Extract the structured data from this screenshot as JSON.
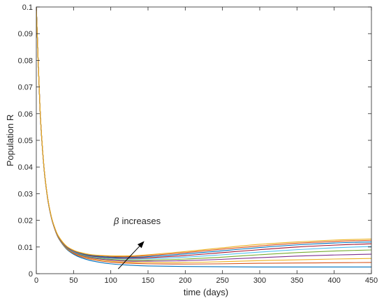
{
  "chart_data": {
    "type": "line",
    "title": "",
    "xlabel": "time (days)",
    "ylabel": "Population R",
    "xlim": [
      0,
      450
    ],
    "ylim": [
      0,
      0.1
    ],
    "xticks": [
      "0",
      "50",
      "100",
      "150",
      "200",
      "250",
      "300",
      "350",
      "400",
      "450"
    ],
    "yticks": [
      "0",
      "0.01",
      "0.02",
      "0.03",
      "0.04",
      "0.05",
      "0.06",
      "0.07",
      "0.08",
      "0.09",
      "0.1"
    ],
    "grid": false,
    "legend": "none",
    "annotation": {
      "symbol": "β",
      "text": "increases",
      "arrow_from": [
        110,
        0.0018
      ],
      "arrow_to": [
        145,
        0.0122
      ]
    },
    "x": [
      0,
      5,
      10,
      15,
      20,
      25,
      30,
      40,
      50,
      60,
      75,
      100,
      125,
      150,
      200,
      250,
      300,
      350,
      400,
      450
    ],
    "series": [
      {
        "color": "#0072BD",
        "values": [
          0.1,
          0.0615,
          0.0405,
          0.0285,
          0.0212,
          0.0165,
          0.0132,
          0.0094,
          0.0073,
          0.006,
          0.0048,
          0.0037,
          0.0032,
          0.0029,
          0.0027,
          0.0026,
          0.0025,
          0.0025,
          0.0025,
          0.0025
        ]
      },
      {
        "color": "#D95319",
        "values": [
          0.1,
          0.0615,
          0.0405,
          0.0285,
          0.0212,
          0.0165,
          0.0133,
          0.0096,
          0.0076,
          0.0064,
          0.0053,
          0.0043,
          0.0039,
          0.0037,
          0.0036,
          0.0037,
          0.0039,
          0.004,
          0.0041,
          0.0042
        ]
      },
      {
        "color": "#EDB120",
        "values": [
          0.1,
          0.0616,
          0.0406,
          0.0286,
          0.0213,
          0.0166,
          0.0134,
          0.0097,
          0.0078,
          0.0067,
          0.0056,
          0.0047,
          0.0043,
          0.0042,
          0.0042,
          0.0045,
          0.0049,
          0.0052,
          0.0055,
          0.0057
        ]
      },
      {
        "color": "#7E2F8E",
        "values": [
          0.1,
          0.0616,
          0.0406,
          0.0286,
          0.0213,
          0.0167,
          0.0135,
          0.0099,
          0.008,
          0.0069,
          0.0059,
          0.0051,
          0.0047,
          0.0047,
          0.0049,
          0.0054,
          0.006,
          0.0066,
          0.007,
          0.0073
        ]
      },
      {
        "color": "#77AC30",
        "values": [
          0.1,
          0.0617,
          0.0407,
          0.0287,
          0.0214,
          0.0168,
          0.0136,
          0.01,
          0.0082,
          0.0071,
          0.0062,
          0.0054,
          0.0051,
          0.0051,
          0.0055,
          0.0062,
          0.0071,
          0.0079,
          0.0085,
          0.0089
        ]
      },
      {
        "color": "#4DBEEE",
        "values": [
          0.1,
          0.0617,
          0.0407,
          0.0287,
          0.0214,
          0.0168,
          0.0137,
          0.0101,
          0.0083,
          0.0073,
          0.0064,
          0.0057,
          0.0055,
          0.0056,
          0.0062,
          0.0071,
          0.0081,
          0.009,
          0.0097,
          0.0102
        ]
      },
      {
        "color": "#A2142F",
        "values": [
          0.1,
          0.0618,
          0.0408,
          0.0288,
          0.0215,
          0.0169,
          0.0138,
          0.0102,
          0.0085,
          0.0075,
          0.0066,
          0.006,
          0.0058,
          0.006,
          0.0068,
          0.0079,
          0.009,
          0.01,
          0.0107,
          0.0112
        ]
      },
      {
        "color": "#0072BD",
        "values": [
          0.1,
          0.0618,
          0.0408,
          0.0288,
          0.0215,
          0.017,
          0.0139,
          0.0103,
          0.0086,
          0.0076,
          0.0068,
          0.0062,
          0.0061,
          0.0064,
          0.0074,
          0.0086,
          0.0098,
          0.0108,
          0.0115,
          0.0119
        ]
      },
      {
        "color": "#D95319",
        "values": [
          0.1,
          0.0619,
          0.0409,
          0.0289,
          0.0216,
          0.017,
          0.0139,
          0.0104,
          0.0087,
          0.0078,
          0.007,
          0.0065,
          0.0064,
          0.0068,
          0.0079,
          0.0092,
          0.0104,
          0.0114,
          0.0121,
          0.0125
        ]
      },
      {
        "color": "#EDB120",
        "values": [
          0.1,
          0.0619,
          0.0409,
          0.0289,
          0.0216,
          0.0171,
          0.014,
          0.0105,
          0.0088,
          0.0079,
          0.0071,
          0.0067,
          0.0067,
          0.0071,
          0.0083,
          0.0097,
          0.011,
          0.0119,
          0.0126,
          0.013
        ]
      }
    ]
  }
}
